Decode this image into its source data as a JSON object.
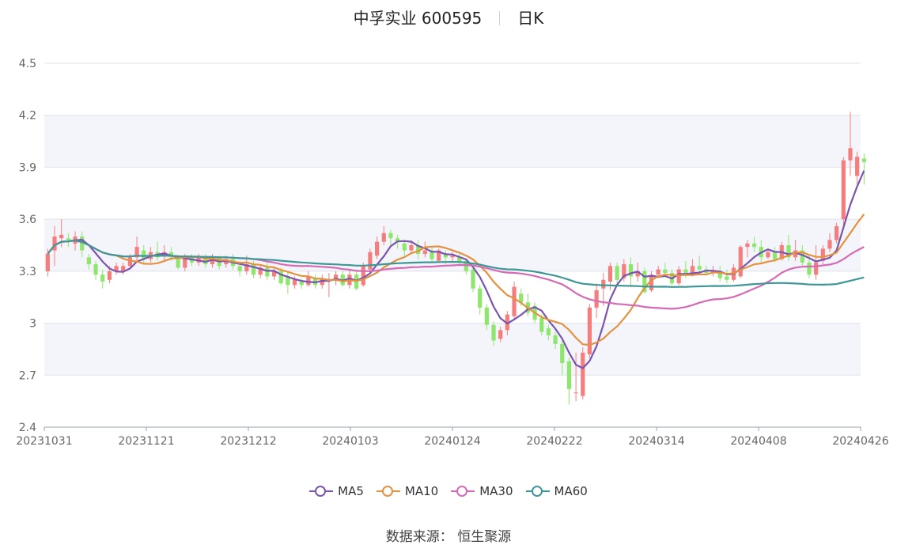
{
  "title": {
    "name": "中孚实业 600595",
    "period": "日K"
  },
  "source": "数据来源： 恒生聚源",
  "colors": {
    "up": "#f47e7e",
    "down": "#8ee66e",
    "ma5": "#7a55b0",
    "ma10": "#e49240",
    "ma30": "#d56ab5",
    "ma60": "#3f9796",
    "grid": "#dfe3ec",
    "band": "#f4f5fa"
  },
  "chart_data": {
    "type": "candlestick",
    "ylim": [
      2.4,
      4.5
    ],
    "yticks": [
      "2.4",
      "2.7",
      "3",
      "3.3",
      "3.6",
      "3.9",
      "4.2",
      "4.5"
    ],
    "xticks": [
      "20231031",
      "20231121",
      "20231212",
      "20240103",
      "20240124",
      "20240222",
      "20240314",
      "20240408",
      "20240426"
    ],
    "grid": true,
    "legend_position": "bottom",
    "legend": [
      "MA5",
      "MA10",
      "MA30",
      "MA60"
    ],
    "n_days": 119,
    "candles": [
      [
        3.3,
        3.4,
        3.27,
        3.43
      ],
      [
        3.42,
        3.5,
        3.33,
        3.56
      ],
      [
        3.49,
        3.51,
        3.44,
        3.6
      ],
      [
        3.49,
        3.48,
        3.44,
        3.52
      ],
      [
        3.46,
        3.5,
        3.42,
        3.53
      ],
      [
        3.5,
        3.42,
        3.38,
        3.53
      ],
      [
        3.38,
        3.34,
        3.31,
        3.4
      ],
      [
        3.34,
        3.28,
        3.25,
        3.36
      ],
      [
        3.28,
        3.24,
        3.2,
        3.31
      ],
      [
        3.25,
        3.3,
        3.23,
        3.33
      ],
      [
        3.3,
        3.33,
        3.28,
        3.35
      ],
      [
        3.3,
        3.33,
        3.28,
        3.35
      ],
      [
        3.33,
        3.38,
        3.31,
        3.4
      ],
      [
        3.38,
        3.44,
        3.36,
        3.5
      ],
      [
        3.42,
        3.37,
        3.35,
        3.45
      ],
      [
        3.37,
        3.41,
        3.35,
        3.44
      ],
      [
        3.41,
        3.38,
        3.36,
        3.47
      ],
      [
        3.39,
        3.41,
        3.36,
        3.45
      ],
      [
        3.41,
        3.38,
        3.36,
        3.44
      ],
      [
        3.38,
        3.32,
        3.31,
        3.39
      ],
      [
        3.32,
        3.38,
        3.3,
        3.4
      ],
      [
        3.38,
        3.35,
        3.33,
        3.4
      ],
      [
        3.35,
        3.38,
        3.33,
        3.4
      ],
      [
        3.38,
        3.34,
        3.32,
        3.4
      ],
      [
        3.34,
        3.38,
        3.32,
        3.4
      ],
      [
        3.38,
        3.33,
        3.31,
        3.39
      ],
      [
        3.34,
        3.37,
        3.32,
        3.39
      ],
      [
        3.37,
        3.33,
        3.31,
        3.4
      ],
      [
        3.33,
        3.3,
        3.27,
        3.36
      ],
      [
        3.3,
        3.34,
        3.28,
        3.39
      ],
      [
        3.34,
        3.28,
        3.26,
        3.36
      ],
      [
        3.28,
        3.32,
        3.26,
        3.34
      ],
      [
        3.32,
        3.27,
        3.25,
        3.35
      ],
      [
        3.27,
        3.3,
        3.25,
        3.32
      ],
      [
        3.3,
        3.23,
        3.22,
        3.32
      ],
      [
        3.27,
        3.22,
        3.17,
        3.3
      ],
      [
        3.22,
        3.25,
        3.2,
        3.27
      ],
      [
        3.24,
        3.22,
        3.2,
        3.26
      ],
      [
        3.22,
        3.27,
        3.21,
        3.3
      ],
      [
        3.26,
        3.22,
        3.2,
        3.28
      ],
      [
        3.22,
        3.26,
        3.2,
        3.28
      ],
      [
        3.25,
        3.25,
        3.15,
        3.29
      ],
      [
        3.25,
        3.28,
        3.22,
        3.3
      ],
      [
        3.28,
        3.22,
        3.21,
        3.3
      ],
      [
        3.22,
        3.28,
        3.2,
        3.31
      ],
      [
        3.28,
        3.2,
        3.19,
        3.31
      ],
      [
        3.22,
        3.33,
        3.21,
        3.35
      ],
      [
        3.31,
        3.41,
        3.29,
        3.43
      ],
      [
        3.39,
        3.47,
        3.37,
        3.5
      ],
      [
        3.47,
        3.52,
        3.45,
        3.56
      ],
      [
        3.52,
        3.49,
        3.45,
        3.54
      ],
      [
        3.49,
        3.47,
        3.43,
        3.51
      ],
      [
        3.46,
        3.42,
        3.38,
        3.48
      ],
      [
        3.42,
        3.45,
        3.4,
        3.48
      ],
      [
        3.45,
        3.4,
        3.37,
        3.48
      ],
      [
        3.4,
        3.42,
        3.38,
        3.47
      ],
      [
        3.42,
        3.37,
        3.35,
        3.44
      ],
      [
        3.36,
        3.42,
        3.35,
        3.43
      ],
      [
        3.4,
        3.38,
        3.34,
        3.42
      ],
      [
        3.38,
        3.39,
        3.35,
        3.41
      ],
      [
        3.38,
        3.35,
        3.33,
        3.4
      ],
      [
        3.36,
        3.3,
        3.28,
        3.37
      ],
      [
        3.31,
        3.2,
        3.18,
        3.33
      ],
      [
        3.2,
        3.09,
        3.05,
        3.22
      ],
      [
        3.09,
        2.99,
        2.96,
        3.11
      ],
      [
        2.99,
        2.9,
        2.87,
        3.01
      ],
      [
        2.91,
        2.96,
        2.89,
        2.98
      ],
      [
        2.96,
        3.05,
        2.93,
        3.07
      ],
      [
        3.04,
        3.21,
        3.02,
        3.24
      ],
      [
        3.17,
        3.12,
        3.1,
        3.2
      ],
      [
        3.12,
        3.06,
        3.04,
        3.17
      ],
      [
        3.1,
        3.02,
        3.0,
        3.12
      ],
      [
        3.03,
        2.95,
        2.93,
        3.05
      ],
      [
        2.97,
        2.93,
        2.9,
        2.99
      ],
      [
        2.93,
        2.88,
        2.85,
        2.95
      ],
      [
        2.88,
        2.77,
        2.7,
        2.9
      ],
      [
        2.78,
        2.62,
        2.53,
        2.8
      ],
      [
        2.6,
        2.6,
        2.55,
        2.83
      ],
      [
        2.58,
        2.83,
        2.56,
        2.86
      ],
      [
        2.82,
        3.09,
        2.8,
        3.11
      ],
      [
        3.09,
        3.19,
        3.03,
        3.23
      ],
      [
        3.2,
        3.25,
        3.1,
        3.29
      ],
      [
        3.24,
        3.33,
        3.19,
        3.35
      ],
      [
        3.33,
        3.25,
        3.23,
        3.35
      ],
      [
        3.26,
        3.34,
        3.24,
        3.37
      ],
      [
        3.34,
        3.27,
        3.22,
        3.38
      ],
      [
        3.27,
        3.3,
        3.24,
        3.35
      ],
      [
        3.3,
        3.18,
        3.17,
        3.32
      ],
      [
        3.19,
        3.28,
        3.18,
        3.3
      ],
      [
        3.28,
        3.31,
        3.26,
        3.33
      ],
      [
        3.31,
        3.29,
        3.27,
        3.35
      ],
      [
        3.29,
        3.23,
        3.22,
        3.31
      ],
      [
        3.23,
        3.31,
        3.22,
        3.33
      ],
      [
        3.31,
        3.28,
        3.26,
        3.36
      ],
      [
        3.28,
        3.33,
        3.27,
        3.37
      ],
      [
        3.33,
        3.31,
        3.29,
        3.39
      ],
      [
        3.31,
        3.29,
        3.28,
        3.33
      ],
      [
        3.29,
        3.3,
        3.27,
        3.33
      ],
      [
        3.3,
        3.26,
        3.24,
        3.33
      ],
      [
        3.27,
        3.25,
        3.23,
        3.31
      ],
      [
        3.25,
        3.32,
        3.24,
        3.34
      ],
      [
        3.27,
        3.44,
        3.26,
        3.45
      ],
      [
        3.44,
        3.46,
        3.38,
        3.48
      ],
      [
        3.46,
        3.44,
        3.41,
        3.5
      ],
      [
        3.44,
        3.38,
        3.34,
        3.48
      ],
      [
        3.38,
        3.41,
        3.37,
        3.43
      ],
      [
        3.41,
        3.37,
        3.35,
        3.44
      ],
      [
        3.37,
        3.45,
        3.36,
        3.47
      ],
      [
        3.45,
        3.38,
        3.36,
        3.51
      ],
      [
        3.38,
        3.42,
        3.36,
        3.48
      ],
      [
        3.42,
        3.35,
        3.33,
        3.45
      ],
      [
        3.35,
        3.28,
        3.26,
        3.4
      ],
      [
        3.28,
        3.35,
        3.25,
        3.45
      ],
      [
        3.36,
        3.43,
        3.34,
        3.45
      ],
      [
        3.43,
        3.48,
        3.41,
        3.52
      ],
      [
        3.48,
        3.56,
        3.46,
        3.58
      ],
      [
        3.6,
        3.94,
        3.55,
        3.96
      ],
      [
        3.94,
        4.01,
        3.85,
        4.22
      ],
      [
        3.85,
        3.96,
        3.8,
        3.99
      ],
      [
        3.95,
        3.93,
        3.8,
        3.98
      ]
    ]
  }
}
